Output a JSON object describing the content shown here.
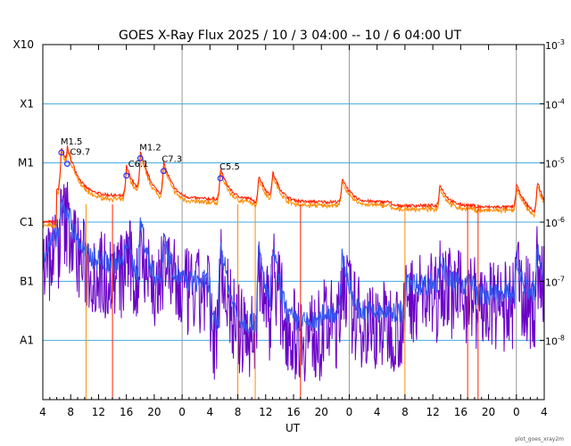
{
  "chart_data": {
    "type": "line",
    "title": "GOES X-Ray Flux   2025 / 10 /  3   04:00 -- 10 /  6   04:00   UT",
    "xlabel": "UT",
    "time_range": [
      "2025-10-03 04:00",
      "2025-10-06 04:00"
    ],
    "x_tick_labels": [
      "4",
      "8",
      "12",
      "16",
      "20",
      "0",
      "4",
      "8",
      "12",
      "16",
      "20",
      "0",
      "4",
      "8",
      "12",
      "16",
      "20",
      "0",
      "4"
    ],
    "y_scale": "log",
    "ylim": [
      1e-09,
      0.001
    ],
    "left_axis_labels": [
      {
        "label": "X10",
        "flux": 0.001
      },
      {
        "label": "X1",
        "flux": 0.0001
      },
      {
        "label": "M1",
        "flux": 1e-05
      },
      {
        "label": "C1",
        "flux": 1e-06
      },
      {
        "label": "B1",
        "flux": 1e-07
      },
      {
        "label": "A1",
        "flux": 1e-08
      }
    ],
    "right_axis_labels": [
      {
        "base": "10",
        "exp": "-3",
        "flux": 0.001
      },
      {
        "base": "10",
        "exp": "-4",
        "flux": 0.0001
      },
      {
        "base": "10",
        "exp": "-5",
        "flux": 1e-05
      },
      {
        "base": "10",
        "exp": "-6",
        "flux": 1e-06
      },
      {
        "base": "10",
        "exp": "-7",
        "flux": 1e-07
      },
      {
        "base": "10",
        "exp": "-8",
        "flux": 1e-08
      }
    ],
    "flare_annotations": [
      {
        "label": "M1.5",
        "time": "2025-10-03 06:40",
        "flux": 1.5e-05
      },
      {
        "label": "C9.7",
        "time": "2025-10-03 07:30",
        "flux": 9.7e-06
      },
      {
        "label": "C6.1",
        "time": "2025-10-03 16:00",
        "flux": 6.1e-06
      },
      {
        "label": "M1.2",
        "time": "2025-10-03 18:00",
        "flux": 1.2e-05
      },
      {
        "label": "C7.3",
        "time": "2025-10-03 21:20",
        "flux": 7.3e-06
      },
      {
        "label": "C5.5",
        "time": "2025-10-04 05:30",
        "flux": 5.5e-06
      }
    ],
    "day_boundaries": [
      "2025-10-04 00:00",
      "2025-10-05 00:00",
      "2025-10-06 00:00"
    ],
    "series": [
      {
        "color": "#ff2200",
        "note": "long-wavelength channel (GOES primary)"
      },
      {
        "color": "#ff8c00",
        "note": "long-wavelength channel (GOES secondary)"
      },
      {
        "color": "#3355ee",
        "note": "short-wavelength channel (GOES primary)"
      },
      {
        "color": "#6a00c8",
        "note": "short-wavelength channel (GOES secondary)"
      }
    ],
    "grid_color": "#3fa9e0",
    "grid": true
  },
  "credit": "plot_goes_xray2m"
}
